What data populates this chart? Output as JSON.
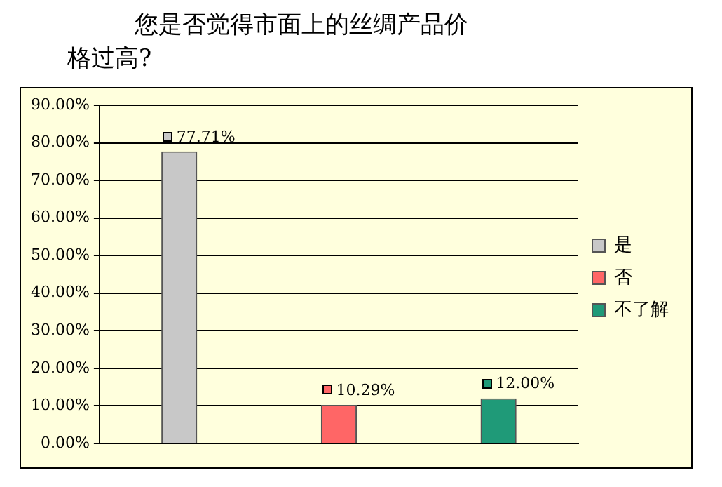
{
  "chart_data": {
    "type": "bar",
    "title": "您是否觉得市面上的丝绸产品价格过高?",
    "categories": [
      null,
      null,
      null
    ],
    "series": [
      {
        "name": "是",
        "color": "#c8c8c8",
        "values": [
          77.71,
          null,
          null
        ],
        "value_labels": [
          "77.71%",
          null,
          null
        ]
      },
      {
        "name": "否",
        "color": "#ff6666",
        "values": [
          null,
          10.29,
          null
        ],
        "value_labels": [
          null,
          "10.29%",
          null
        ]
      },
      {
        "name": "不了解",
        "color": "#1f9a78",
        "values": [
          null,
          null,
          12.0
        ],
        "value_labels": [
          null,
          null,
          "12.00%"
        ]
      }
    ],
    "ylim": [
      0,
      90
    ],
    "yticks": [
      {
        "value": 0,
        "label": "0.00%"
      },
      {
        "value": 10,
        "label": "10.00%"
      },
      {
        "value": 20,
        "label": "20.00%"
      },
      {
        "value": 30,
        "label": "30.00%"
      },
      {
        "value": 40,
        "label": "40.00%"
      },
      {
        "value": 50,
        "label": "50.00%"
      },
      {
        "value": 60,
        "label": "60.00%"
      },
      {
        "value": 70,
        "label": "70.00%"
      },
      {
        "value": 80,
        "label": "80.00%"
      },
      {
        "value": 90,
        "label": "90.00%"
      }
    ],
    "grid": "y",
    "legend": "right",
    "tick_labels": "y"
  }
}
